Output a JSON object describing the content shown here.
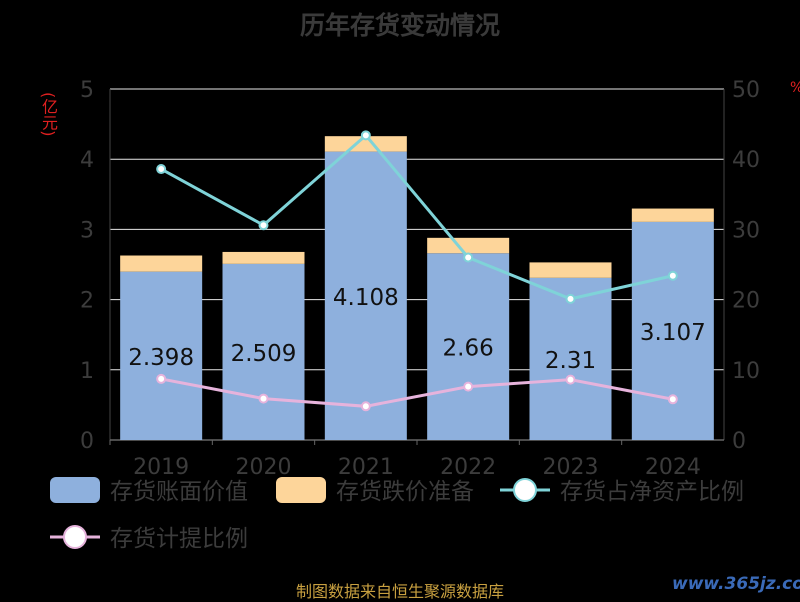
{
  "title": "历年存货变动情况",
  "left_axis_unit": "(亿元)",
  "right_axis_unit": "%",
  "footer": "制图数据来自恒生聚源数据库",
  "watermark": "www.365jz.com",
  "colors": {
    "book_value": "#8eb0dd",
    "impairment": "#fdd59a",
    "net_asset_ratio": "#7fd3d8",
    "provision_ratio": "#e6b3dc",
    "axis_text": "#3c3c3c",
    "grid": "#e8e8e8"
  },
  "chart_data": {
    "type": "bar",
    "categories": [
      "2019",
      "2020",
      "2021",
      "2022",
      "2023",
      "2024"
    ],
    "ylim_left": [
      0,
      5
    ],
    "yticks_left": [
      "0",
      "1",
      "2",
      "3",
      "4",
      "5"
    ],
    "ylim_right": [
      0,
      50
    ],
    "yticks_right": [
      "0",
      "10",
      "20",
      "30",
      "40",
      "50"
    ],
    "grid": true,
    "legend_position": "bottom",
    "series": [
      {
        "name": "存货账面价值",
        "kind": "bar",
        "axis": "left",
        "stack": "inv",
        "values": [
          2.398,
          2.509,
          4.108,
          2.66,
          2.31,
          3.107
        ],
        "labels": [
          "2.398",
          "2.509",
          "4.108",
          "2.66",
          "2.31",
          "3.107"
        ]
      },
      {
        "name": "存货跌价准备",
        "kind": "bar",
        "axis": "left",
        "stack": "inv",
        "values": [
          0.23,
          0.17,
          0.22,
          0.22,
          0.22,
          0.19
        ]
      },
      {
        "name": "存货占净资产比例",
        "kind": "line",
        "axis": "right",
        "values": [
          38.6,
          30.6,
          43.4,
          26.0,
          20.1,
          23.4
        ]
      },
      {
        "name": "存货计提比例",
        "kind": "line",
        "axis": "right",
        "values": [
          8.7,
          5.9,
          4.8,
          7.6,
          8.6,
          5.8
        ]
      }
    ]
  }
}
